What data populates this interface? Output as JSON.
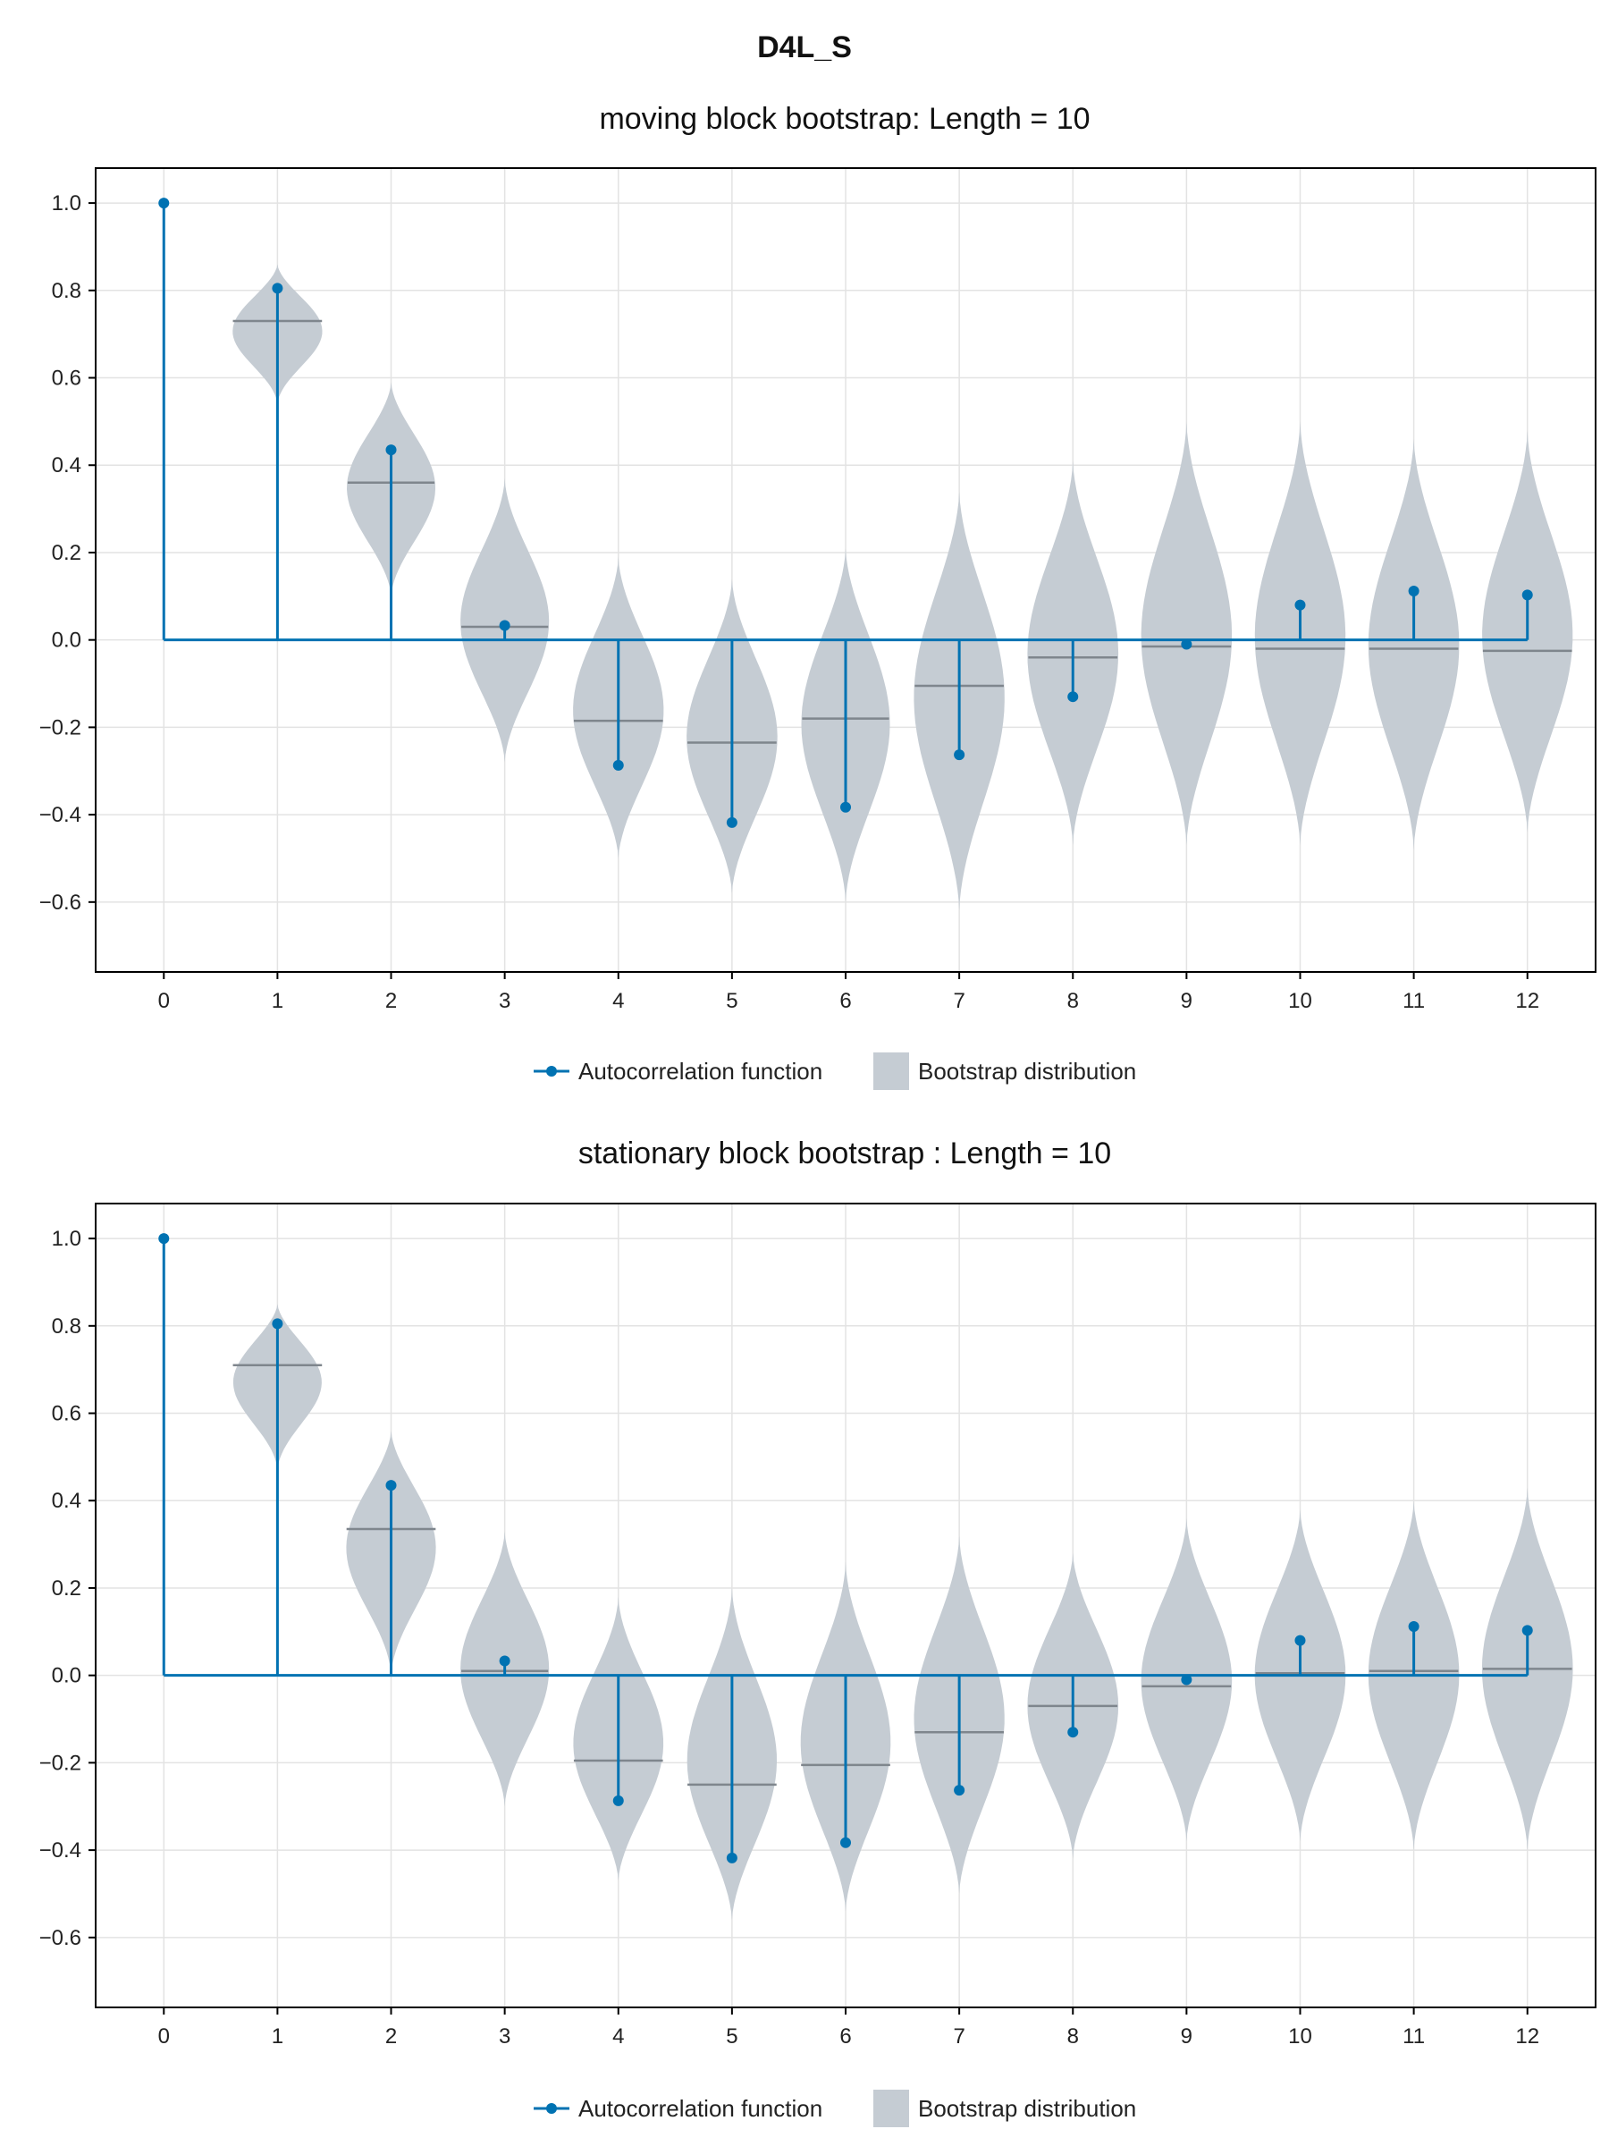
{
  "title": "D4L_S",
  "colors": {
    "acf": "#0072b2",
    "violin": "#c5ccd3",
    "median": "#7f868d",
    "grid": "#e3e3e3",
    "frame": "#000000"
  },
  "legend": {
    "acf_label": "Autocorrelation function",
    "boot_label": "Bootstrap distribution"
  },
  "chart_data": [
    {
      "type": "violin+stem",
      "title": "moving block bootstrap: Length = 10",
      "xlim": [
        -0.6,
        12.6
      ],
      "ylim": [
        -0.76,
        1.08
      ],
      "x_ticks": [
        0,
        1,
        2,
        3,
        4,
        5,
        6,
        7,
        8,
        9,
        10,
        11,
        12
      ],
      "y_ticks": [
        1.0,
        0.8,
        0.6,
        0.4,
        0.2,
        0.0,
        -0.2,
        -0.4,
        -0.6
      ],
      "y_tick_labels": [
        "1.0",
        "0.8",
        "0.6",
        "0.4",
        "0.2",
        "0.0",
        "−0.2",
        "−0.4",
        "−0.6"
      ],
      "grid": true,
      "legend_position": "bottom",
      "acf": {
        "lags": [
          0,
          1,
          2,
          3,
          4,
          5,
          6,
          7,
          8,
          9,
          10,
          11,
          12
        ],
        "values": [
          1.0,
          0.805,
          0.435,
          0.033,
          -0.287,
          -0.418,
          -0.383,
          -0.263,
          -0.13,
          -0.01,
          0.08,
          0.112,
          0.103
        ]
      },
      "bootstrap": [
        {
          "lag": 1,
          "min": 0.54,
          "max": 0.86,
          "median": 0.73,
          "half_width": 0.4
        },
        {
          "lag": 2,
          "min": 0.1,
          "max": 0.59,
          "median": 0.36,
          "half_width": 0.39
        },
        {
          "lag": 3,
          "min": -0.28,
          "max": 0.37,
          "median": 0.03,
          "half_width": 0.39
        },
        {
          "lag": 4,
          "min": -0.5,
          "max": 0.19,
          "median": -0.185,
          "half_width": 0.4
        },
        {
          "lag": 5,
          "min": -0.58,
          "max": 0.14,
          "median": -0.235,
          "half_width": 0.4
        },
        {
          "lag": 6,
          "min": -0.6,
          "max": 0.21,
          "median": -0.18,
          "half_width": 0.39
        },
        {
          "lag": 7,
          "min": -0.62,
          "max": 0.34,
          "median": -0.105,
          "half_width": 0.4
        },
        {
          "lag": 8,
          "min": -0.47,
          "max": 0.41,
          "median": -0.04,
          "half_width": 0.4
        },
        {
          "lag": 9,
          "min": -0.47,
          "max": 0.5,
          "median": -0.015,
          "half_width": 0.4
        },
        {
          "lag": 10,
          "min": -0.47,
          "max": 0.5,
          "median": -0.02,
          "half_width": 0.4
        },
        {
          "lag": 11,
          "min": -0.48,
          "max": 0.46,
          "median": -0.02,
          "half_width": 0.4
        },
        {
          "lag": 12,
          "min": -0.44,
          "max": 0.48,
          "median": -0.025,
          "half_width": 0.4
        }
      ]
    },
    {
      "type": "violin+stem",
      "title": "stationary block bootstrap : Length = 10",
      "xlim": [
        -0.6,
        12.6
      ],
      "ylim": [
        -0.76,
        1.08
      ],
      "x_ticks": [
        0,
        1,
        2,
        3,
        4,
        5,
        6,
        7,
        8,
        9,
        10,
        11,
        12
      ],
      "y_ticks": [
        1.0,
        0.8,
        0.6,
        0.4,
        0.2,
        0.0,
        -0.2,
        -0.4,
        -0.6
      ],
      "y_tick_labels": [
        "1.0",
        "0.8",
        "0.6",
        "0.4",
        "0.2",
        "0.0",
        "−0.2",
        "−0.4",
        "−0.6"
      ],
      "grid": true,
      "legend_position": "bottom",
      "acf": {
        "lags": [
          0,
          1,
          2,
          3,
          4,
          5,
          6,
          7,
          8,
          9,
          10,
          11,
          12
        ],
        "values": [
          1.0,
          0.805,
          0.435,
          0.033,
          -0.287,
          -0.418,
          -0.383,
          -0.263,
          -0.13,
          -0.01,
          0.08,
          0.112,
          0.103
        ]
      },
      "bootstrap": [
        {
          "lag": 1,
          "min": 0.47,
          "max": 0.85,
          "median": 0.71,
          "half_width": 0.4
        },
        {
          "lag": 2,
          "min": 0.0,
          "max": 0.56,
          "median": 0.335,
          "half_width": 0.4
        },
        {
          "lag": 3,
          "min": -0.3,
          "max": 0.33,
          "median": 0.01,
          "half_width": 0.39
        },
        {
          "lag": 4,
          "min": -0.47,
          "max": 0.18,
          "median": -0.195,
          "half_width": 0.4
        },
        {
          "lag": 5,
          "min": -0.56,
          "max": 0.2,
          "median": -0.25,
          "half_width": 0.4
        },
        {
          "lag": 6,
          "min": -0.54,
          "max": 0.26,
          "median": -0.205,
          "half_width": 0.4
        },
        {
          "lag": 7,
          "min": -0.5,
          "max": 0.32,
          "median": -0.13,
          "half_width": 0.4
        },
        {
          "lag": 8,
          "min": -0.42,
          "max": 0.28,
          "median": -0.07,
          "half_width": 0.4
        },
        {
          "lag": 9,
          "min": -0.38,
          "max": 0.36,
          "median": -0.025,
          "half_width": 0.4
        },
        {
          "lag": 10,
          "min": -0.38,
          "max": 0.38,
          "median": 0.005,
          "half_width": 0.4
        },
        {
          "lag": 11,
          "min": -0.4,
          "max": 0.4,
          "median": 0.01,
          "half_width": 0.4
        },
        {
          "lag": 12,
          "min": -0.4,
          "max": 0.43,
          "median": 0.015,
          "half_width": 0.4
        }
      ]
    }
  ]
}
